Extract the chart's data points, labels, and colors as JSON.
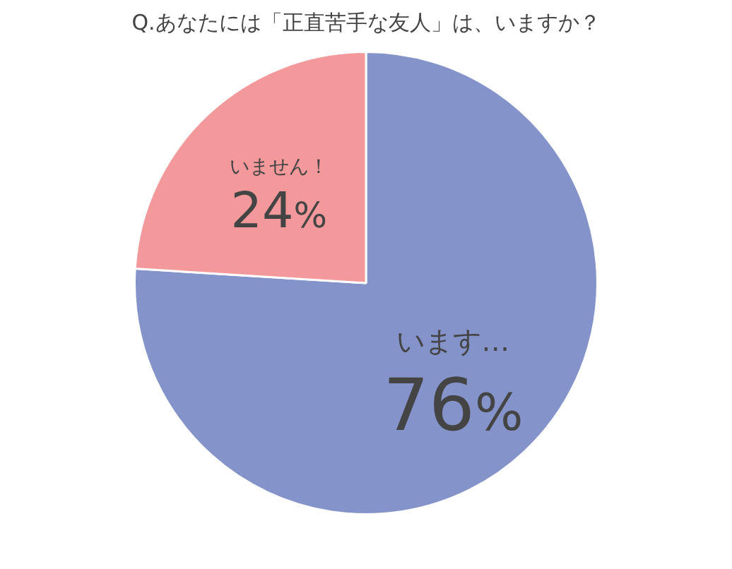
{
  "chart_data": {
    "type": "pie",
    "title": "Q.あなたには「正直苦手な友人」は、いますか？",
    "categories": [
      "います…",
      "いません！"
    ],
    "values": [
      76,
      24
    ],
    "colors": [
      "#8494cb",
      "#f4999b"
    ],
    "value_labels": [
      "76%",
      "24%"
    ]
  }
}
